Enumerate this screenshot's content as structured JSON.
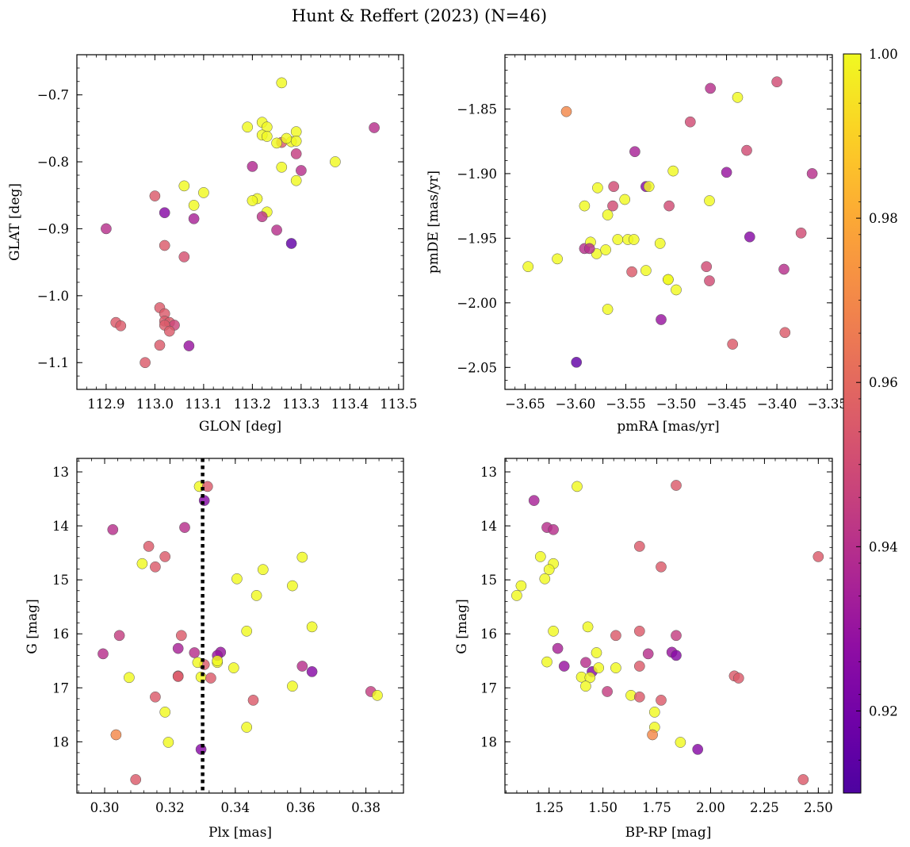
{
  "figure": {
    "title": "Hunt & Reffert (2023) (N=46)"
  },
  "colorbar": {
    "min": 0.91,
    "max": 1.0,
    "ticks": [
      0.92,
      0.94,
      0.96,
      0.98,
      1.0
    ],
    "tick_labels": [
      "0.92",
      "0.94",
      "0.96",
      "0.98",
      "1.00"
    ],
    "colormap": "plasma"
  },
  "colors": {
    "marker_edge": "#555555",
    "refline": "#000000"
  },
  "chart_data": [
    {
      "type": "scatter",
      "id": "glon-glat",
      "xlabel": "GLON [deg]",
      "ylabel": "GLAT [deg]",
      "xlim": [
        112.84,
        113.51
      ],
      "ylim": [
        -1.14,
        -0.64
      ],
      "xticks": [
        112.9,
        113.0,
        113.1,
        113.2,
        113.3,
        113.4,
        113.5
      ],
      "xtick_labels": [
        "112.9",
        "113.0",
        "113.1",
        "113.2",
        "113.3",
        "113.4",
        "113.5"
      ],
      "yticks": [
        -0.7,
        -0.8,
        -0.9,
        -1.0,
        -1.1
      ],
      "ytick_labels": [
        "−0.7",
        "−0.8",
        "−0.9",
        "−1.0",
        "−1.1"
      ],
      "x": [
        113.26,
        113.19,
        113.22,
        113.23,
        113.29,
        113.26,
        113.25,
        113.28,
        113.27,
        113.29,
        113.37,
        113.45,
        113.26,
        113.3,
        113.22,
        113.2,
        113.29,
        113.06,
        113.1,
        113.21,
        113.2,
        113.08,
        113.23,
        113.22,
        113.25,
        113.28,
        113.0,
        113.02,
        113.08,
        113.02,
        112.9,
        113.06,
        113.01,
        113.02,
        113.02,
        113.03,
        113.04,
        113.02,
        113.03,
        112.92,
        112.93,
        113.07,
        113.01,
        112.98,
        113.29,
        113.23
      ],
      "y": [
        -0.682,
        -0.748,
        -0.741,
        -0.748,
        -0.755,
        -0.771,
        -0.772,
        -0.77,
        -0.765,
        -0.769,
        -0.8,
        -0.749,
        -0.808,
        -0.813,
        -0.76,
        -0.807,
        -0.828,
        -0.836,
        -0.846,
        -0.855,
        -0.858,
        -0.865,
        -0.875,
        -0.882,
        -0.902,
        -0.922,
        -0.851,
        -0.876,
        -0.885,
        -0.925,
        -0.9,
        -0.942,
        -1.018,
        -1.027,
        -1.038,
        -1.04,
        -1.044,
        -1.044,
        -1.053,
        -1.04,
        -1.045,
        -1.075,
        -1.074,
        -1.1,
        -0.788,
        -0.762
      ],
      "p": [
        1.0,
        1.0,
        1.0,
        1.0,
        1.0,
        0.955,
        1.0,
        1.0,
        1.0,
        1.0,
        1.0,
        0.94,
        1.0,
        0.94,
        1.0,
        0.938,
        1.0,
        1.0,
        1.0,
        1.0,
        1.0,
        1.0,
        1.0,
        0.942,
        0.94,
        0.915,
        0.955,
        0.925,
        0.935,
        0.955,
        0.94,
        0.952,
        0.955,
        0.955,
        0.955,
        0.955,
        0.948,
        0.955,
        0.955,
        0.955,
        0.955,
        0.93,
        0.955,
        0.955,
        0.945,
        1.0
      ]
    },
    {
      "type": "scatter",
      "id": "pmra-pmde",
      "xlabel": "pmRA [mas/yr]",
      "ylabel": "pmDE [mas/yr]",
      "xlim": [
        -3.67,
        -3.345
      ],
      "ylim": [
        -2.067,
        -1.808
      ],
      "xticks": [
        -3.65,
        -3.6,
        -3.55,
        -3.5,
        -3.45,
        -3.4,
        -3.35
      ],
      "xtick_labels": [
        "−3.65",
        "−3.60",
        "−3.55",
        "−3.50",
        "−3.45",
        "−3.40",
        "−3.35"
      ],
      "yticks": [
        -1.85,
        -1.9,
        -1.95,
        -2.0,
        -2.05
      ],
      "ytick_labels": [
        "−1.85",
        "−1.90",
        "−1.95",
        "−2.00",
        "−2.05"
      ],
      "x": [
        -3.609,
        -3.466,
        -3.439,
        -3.4,
        -3.486,
        -3.43,
        -3.541,
        -3.45,
        -3.365,
        -3.503,
        -3.53,
        -3.527,
        -3.578,
        -3.591,
        -3.562,
        -3.551,
        -3.563,
        -3.568,
        -3.507,
        -3.467,
        -3.591,
        -3.579,
        -3.548,
        -3.53,
        -3.508,
        -3.427,
        -3.5,
        -3.585,
        -3.586,
        -3.57,
        -3.558,
        -3.542,
        -3.516,
        -3.393,
        -3.376,
        -3.647,
        -3.618,
        -3.544,
        -3.47,
        -3.467,
        -3.508,
        -3.568,
        -3.515,
        -3.392,
        -3.444,
        -3.599
      ],
      "y": [
        -1.852,
        -1.834,
        -1.841,
        -1.829,
        -1.86,
        -1.882,
        -1.883,
        -1.899,
        -1.9,
        -1.898,
        -1.91,
        -1.91,
        -1.911,
        -1.925,
        -1.91,
        -1.92,
        -1.925,
        -1.932,
        -1.925,
        -1.921,
        -1.958,
        -1.962,
        -1.951,
        -1.975,
        -1.982,
        -1.949,
        -1.99,
        -1.953,
        -1.958,
        -1.959,
        -1.951,
        -1.951,
        -1.954,
        -1.974,
        -1.946,
        -1.972,
        -1.966,
        -1.976,
        -1.972,
        -1.983,
        -1.982,
        -2.005,
        -2.013,
        -2.023,
        -2.032,
        -2.046
      ],
      "p": [
        0.97,
        0.94,
        1.0,
        0.95,
        0.95,
        0.95,
        0.935,
        0.93,
        0.94,
        1.0,
        0.925,
        1.0,
        1.0,
        1.0,
        0.95,
        1.0,
        0.95,
        1.0,
        0.95,
        1.0,
        0.94,
        1.0,
        1.0,
        1.0,
        1.0,
        0.925,
        1.0,
        1.0,
        0.94,
        1.0,
        1.0,
        1.0,
        1.0,
        0.94,
        0.95,
        1.0,
        1.0,
        0.955,
        0.95,
        0.95,
        1.0,
        1.0,
        0.93,
        0.955,
        0.955,
        0.915
      ]
    },
    {
      "type": "scatter",
      "id": "plx-g",
      "xlabel": "Plx [mas]",
      "ylabel": "G [mag]",
      "xlim": [
        0.2915,
        0.3915
      ],
      "ylim": [
        18.95,
        12.75
      ],
      "y_inverted": true,
      "xticks": [
        0.3,
        0.32,
        0.34,
        0.36,
        0.38
      ],
      "xtick_labels": [
        "0.30",
        "0.32",
        "0.34",
        "0.36",
        "0.38"
      ],
      "yticks": [
        13,
        14,
        15,
        16,
        17,
        18
      ],
      "ytick_labels": [
        "13",
        "14",
        "15",
        "16",
        "17",
        "18"
      ],
      "reference_line": {
        "axis": "x",
        "value": 0.33,
        "style": "dotted"
      },
      "x": [
        0.329,
        0.3315,
        0.3305,
        0.3025,
        0.3245,
        0.3135,
        0.3185,
        0.3155,
        0.3115,
        0.3605,
        0.3485,
        0.3405,
        0.3465,
        0.3575,
        0.2995,
        0.3045,
        0.3235,
        0.3225,
        0.3435,
        0.3635,
        0.3355,
        0.3275,
        0.3345,
        0.3305,
        0.3345,
        0.3225,
        0.3285,
        0.3395,
        0.3605,
        0.3635,
        0.3345,
        0.3075,
        0.3295,
        0.3325,
        0.3225,
        0.3575,
        0.3155,
        0.3815,
        0.3835,
        0.3455,
        0.3185,
        0.3435,
        0.3195,
        0.3035,
        0.3095,
        0.3295
      ],
      "y": [
        13.27,
        13.27,
        13.53,
        14.07,
        14.03,
        14.38,
        14.57,
        14.76,
        14.7,
        14.58,
        14.81,
        14.98,
        15.29,
        15.11,
        16.37,
        16.03,
        16.03,
        16.27,
        15.95,
        15.87,
        16.34,
        16.35,
        16.53,
        16.57,
        16.4,
        16.78,
        16.53,
        16.63,
        16.6,
        16.7,
        16.5,
        16.81,
        16.8,
        16.82,
        16.79,
        16.97,
        17.17,
        17.07,
        17.14,
        17.23,
        17.45,
        17.73,
        18.01,
        17.87,
        18.7,
        18.14
      ],
      "p": [
        1.0,
        0.955,
        0.925,
        0.94,
        0.94,
        0.955,
        0.955,
        0.955,
        1.0,
        1.0,
        1.0,
        1.0,
        1.0,
        1.0,
        0.94,
        0.945,
        0.955,
        0.935,
        1.0,
        1.0,
        0.93,
        0.94,
        1.0,
        0.955,
        0.93,
        0.955,
        1.0,
        1.0,
        0.94,
        0.925,
        1.0,
        1.0,
        1.0,
        0.955,
        0.955,
        1.0,
        0.955,
        0.945,
        1.0,
        0.955,
        1.0,
        1.0,
        1.0,
        0.97,
        0.955,
        0.925
      ]
    },
    {
      "type": "scatter",
      "id": "bprp-g",
      "xlabel": "BP-RP [mag]",
      "ylabel": "G [mag]",
      "xlim": [
        1.045,
        2.565
      ],
      "ylim": [
        18.95,
        12.75
      ],
      "y_inverted": true,
      "xticks": [
        1.25,
        1.5,
        1.75,
        2.0,
        2.25,
        2.5
      ],
      "xtick_labels": [
        "1.25",
        "1.50",
        "1.75",
        "2.00",
        "2.25",
        "2.50"
      ],
      "yticks": [
        13,
        14,
        15,
        16,
        17,
        18
      ],
      "ytick_labels": [
        "13",
        "14",
        "15",
        "16",
        "17",
        "18"
      ],
      "x": [
        1.38,
        1.84,
        1.18,
        1.24,
        1.27,
        1.67,
        1.21,
        1.77,
        1.27,
        1.25,
        1.23,
        1.12,
        1.1,
        1.27,
        1.43,
        1.56,
        1.67,
        1.84,
        1.29,
        1.71,
        1.82,
        1.84,
        1.42,
        1.24,
        1.32,
        1.47,
        1.45,
        1.48,
        1.56,
        1.67,
        1.4,
        1.44,
        1.42,
        1.52,
        1.63,
        1.67,
        1.77,
        2.11,
        2.13,
        1.74,
        1.74,
        1.73,
        1.86,
        1.94,
        2.43,
        2.5
      ],
      "y": [
        13.27,
        13.25,
        13.53,
        14.03,
        14.07,
        14.38,
        14.57,
        14.76,
        14.7,
        14.81,
        14.98,
        15.11,
        15.29,
        15.95,
        15.87,
        16.03,
        15.95,
        16.03,
        16.27,
        16.37,
        16.34,
        16.4,
        16.53,
        16.52,
        16.6,
        16.35,
        16.7,
        16.63,
        16.63,
        16.6,
        16.8,
        16.81,
        16.97,
        17.07,
        17.14,
        17.17,
        17.23,
        16.78,
        16.82,
        17.45,
        17.73,
        17.87,
        18.01,
        18.14,
        18.7,
        14.57
      ],
      "p": [
        1.0,
        0.955,
        0.935,
        0.94,
        0.94,
        0.955,
        1.0,
        0.955,
        1.0,
        1.0,
        1.0,
        1.0,
        1.0,
        1.0,
        1.0,
        0.955,
        0.955,
        0.945,
        0.935,
        0.94,
        0.93,
        0.925,
        0.94,
        1.0,
        0.93,
        1.0,
        0.925,
        1.0,
        1.0,
        0.955,
        1.0,
        1.0,
        1.0,
        0.945,
        1.0,
        0.955,
        0.955,
        0.955,
        0.955,
        1.0,
        1.0,
        0.97,
        1.0,
        0.925,
        0.955,
        0.955
      ]
    }
  ]
}
